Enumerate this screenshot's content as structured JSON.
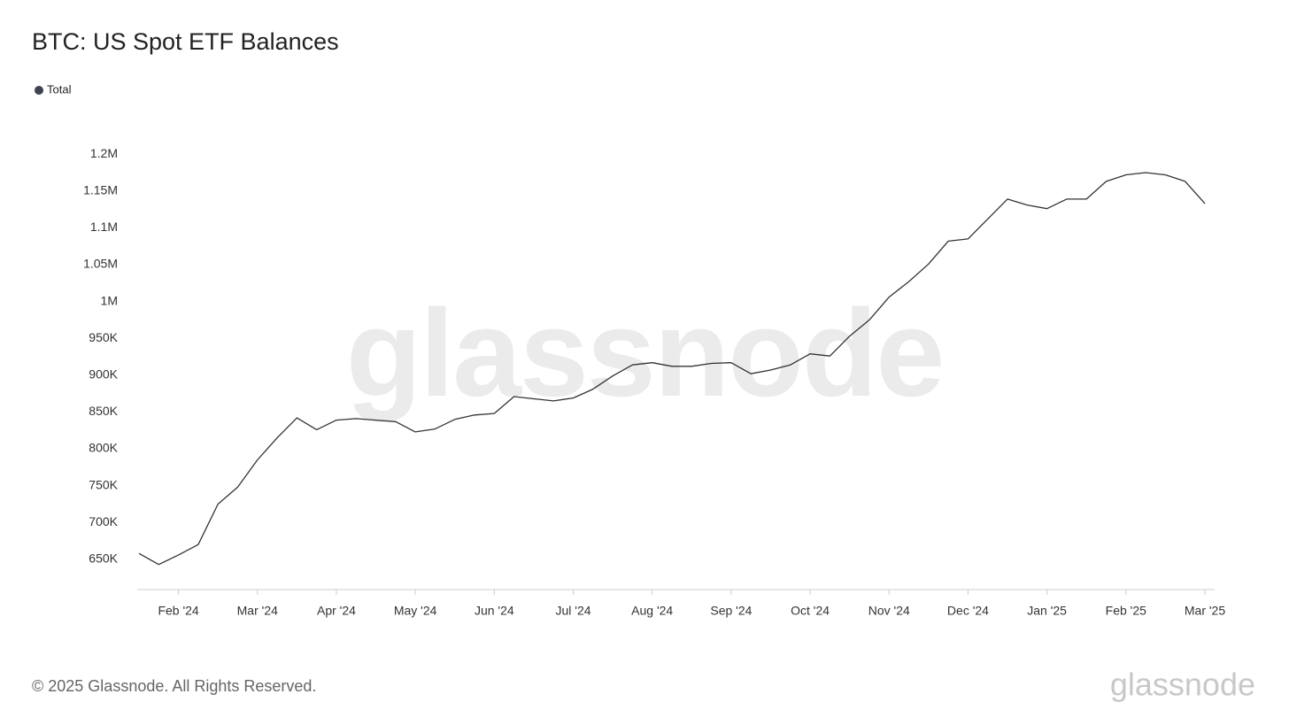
{
  "chart_data": {
    "type": "line",
    "title": "BTC: US Spot ETF Balances",
    "watermark": "glassnode",
    "footer": "© 2025 Glassnode. All Rights Reserved.",
    "logo": "glassnode",
    "categories": [
      null,
      null,
      "Feb '24",
      null,
      null,
      null,
      "Mar '24",
      null,
      null,
      null,
      "Apr '24",
      null,
      null,
      null,
      "May '24",
      null,
      null,
      null,
      "Jun '24",
      null,
      null,
      null,
      "Jul '24",
      null,
      null,
      null,
      "Aug '24",
      null,
      null,
      null,
      "Sep '24",
      null,
      null,
      null,
      "Oct '24",
      null,
      null,
      null,
      "Nov '24",
      null,
      null,
      null,
      "Dec '24",
      null,
      null,
      null,
      "Jan '25",
      null,
      null,
      null,
      "Feb '25",
      null,
      null,
      null,
      "Mar '25"
    ],
    "series": [
      {
        "name": "Total",
        "color": "#333333",
        "values": [
          658000,
          643000,
          656000,
          670000,
          725000,
          748000,
          785000,
          815000,
          842000,
          826000,
          839000,
          841000,
          839000,
          837000,
          823000,
          827000,
          840000,
          846000,
          848000,
          871000,
          868000,
          865000,
          869000,
          881000,
          899000,
          914000,
          917000,
          912000,
          912000,
          916000,
          917000,
          902000,
          907000,
          914000,
          929000,
          926000,
          953000,
          975000,
          1006000,
          1027000,
          1051000,
          1082000,
          1085000,
          1112000,
          1139000,
          1131000,
          1126000,
          1139000,
          1139000,
          1163000,
          1172000,
          1175000,
          1172000,
          1163000,
          1133000
        ]
      }
    ],
    "ylim": [
      609000,
      1217000
    ],
    "yticks": [
      {
        "value": 650000,
        "label": "650K"
      },
      {
        "value": 700000,
        "label": "700K"
      },
      {
        "value": 750000,
        "label": "750K"
      },
      {
        "value": 800000,
        "label": "800K"
      },
      {
        "value": 850000,
        "label": "850K"
      },
      {
        "value": 900000,
        "label": "900K"
      },
      {
        "value": 950000,
        "label": "950K"
      },
      {
        "value": 1000000,
        "label": "1M"
      },
      {
        "value": 1050000,
        "label": "1.05M"
      },
      {
        "value": 1100000,
        "label": "1.1M"
      },
      {
        "value": 1150000,
        "label": "1.15M"
      },
      {
        "value": 1200000,
        "label": "1.2M"
      }
    ],
    "grid": false,
    "legend": "top-left"
  }
}
